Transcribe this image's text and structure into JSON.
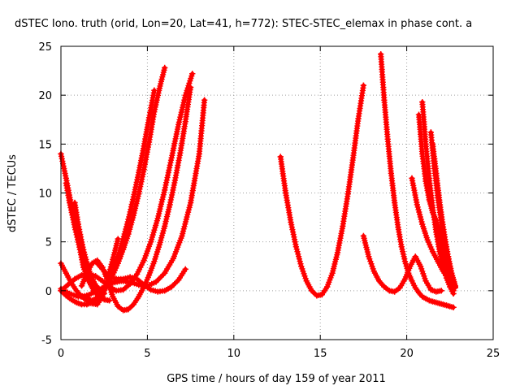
{
  "chart_data": {
    "type": "scatter",
    "title": "dSTEC Iono. truth (orid, Lon=20, Lat=41, h=772): STEC-STEC_elemax in phase cont. a",
    "xlabel": "GPS time / hours of day 159 of year 2011",
    "ylabel": "dSTEC  / TECUs",
    "xlim": [
      0,
      25
    ],
    "ylim": [
      -5,
      25
    ],
    "x_ticks": [
      0,
      5,
      10,
      15,
      20,
      25
    ],
    "y_ticks": [
      -5,
      0,
      5,
      10,
      15,
      20,
      25
    ],
    "x_tick_labels": [
      "0",
      "5",
      "10",
      "15",
      "20",
      "25"
    ],
    "y_tick_labels": [
      "-5",
      "0",
      "5",
      "10",
      "15",
      "20",
      "25"
    ],
    "grid": true,
    "marker": "plus",
    "color": "#ff0000",
    "series": [
      {
        "x": [
          0.0,
          0.3,
          0.6,
          0.9,
          1.2,
          1.5,
          1.8,
          2.1,
          2.4
        ],
        "y": [
          14.0,
          11.5,
          8.8,
          6.3,
          4.1,
          2.3,
          1.0,
          0.3,
          0.0
        ]
      },
      {
        "x": [
          0.3,
          0.5,
          0.8,
          1.1,
          1.3,
          1.6,
          1.9,
          2.2,
          2.5,
          2.8
        ],
        "y": [
          11.0,
          9.0,
          6.5,
          4.2,
          2.4,
          1.0,
          0.0,
          -0.6,
          -0.9,
          -1.0
        ]
      },
      {
        "x": [
          0.8,
          1.0,
          1.3,
          1.6,
          1.9,
          2.2,
          2.5
        ],
        "y": [
          9.0,
          6.8,
          4.2,
          2.2,
          0.9,
          0.1,
          -0.3
        ]
      },
      {
        "x": [
          0.0,
          0.3,
          0.6,
          0.9,
          1.2,
          1.5,
          1.8,
          2.1,
          2.4,
          2.7,
          3.0,
          3.3,
          3.6,
          3.9,
          4.2,
          4.5,
          4.8,
          5.1,
          5.4
        ],
        "y": [
          2.8,
          1.8,
          0.8,
          0.0,
          -0.6,
          -1.0,
          -1.0,
          -0.7,
          -0.1,
          0.8,
          2.0,
          3.5,
          5.3,
          7.3,
          9.6,
          12.1,
          14.8,
          17.7,
          20.5
        ]
      },
      {
        "x": [
          0.0,
          0.3,
          0.6,
          0.9,
          1.2,
          1.5,
          1.8,
          2.1,
          2.4,
          2.7,
          3.0,
          3.3,
          3.6,
          3.9,
          4.2,
          4.5,
          4.8,
          5.1,
          5.4,
          5.7,
          6.0
        ],
        "y": [
          0.0,
          -0.5,
          -0.9,
          -1.2,
          -1.4,
          -1.4,
          -1.2,
          -0.8,
          -0.2,
          0.6,
          1.6,
          2.8,
          4.2,
          5.8,
          7.7,
          9.9,
          12.4,
          15.2,
          18.3,
          20.7,
          22.8
        ]
      },
      {
        "x": [
          0.0,
          0.4,
          0.8,
          1.2,
          1.6,
          2.0,
          2.4,
          2.8,
          3.2,
          3.6,
          4.0,
          4.4,
          4.8,
          5.2,
          5.6,
          6.0,
          6.4,
          6.8,
          7.2,
          7.6
        ],
        "y": [
          0.0,
          0.6,
          1.2,
          1.6,
          1.7,
          1.5,
          1.0,
          0.4,
          0.0,
          0.1,
          0.7,
          1.7,
          3.1,
          5.0,
          7.4,
          10.3,
          13.6,
          17.0,
          20.0,
          22.2
        ]
      },
      {
        "x": [
          0.0,
          0.5,
          1.0,
          1.5,
          2.0,
          2.5,
          3.0,
          3.5,
          4.0,
          4.5,
          5.0,
          5.5,
          6.0,
          6.5,
          7.0,
          7.5,
          8.0,
          8.3
        ],
        "y": [
          0.2,
          -0.3,
          -0.6,
          -0.5,
          -0.1,
          0.4,
          0.8,
          1.0,
          0.9,
          0.6,
          0.5,
          0.9,
          1.8,
          3.3,
          5.6,
          9.0,
          14.0,
          19.5
        ]
      },
      {
        "x": [
          1.2,
          1.5,
          1.8,
          2.1,
          2.4,
          2.7,
          3.0,
          3.3,
          3.6,
          3.9,
          4.2,
          4.5,
          4.8,
          5.1,
          5.4,
          5.7,
          6.0,
          6.3,
          6.6,
          6.9,
          7.2,
          7.5
        ],
        "y": [
          0.5,
          1.8,
          2.8,
          3.1,
          2.4,
          1.0,
          -0.6,
          -1.6,
          -2.0,
          -1.9,
          -1.4,
          -0.6,
          0.4,
          1.6,
          3.0,
          4.7,
          6.6,
          8.8,
          11.3,
          14.1,
          17.3,
          20.8
        ]
      },
      {
        "x": [
          1.5,
          1.8,
          2.1,
          2.4,
          2.7,
          3.0,
          3.3
        ],
        "y": [
          -0.5,
          -1.3,
          -1.4,
          -0.6,
          1.2,
          3.2,
          5.3
        ]
      },
      {
        "x": [
          2.0,
          2.4,
          2.8,
          3.2,
          3.6,
          4.0,
          4.4,
          4.8,
          5.2,
          5.6,
          6.0,
          6.4,
          6.8,
          7.2
        ],
        "y": [
          3.0,
          2.2,
          1.5,
          1.2,
          1.2,
          1.4,
          1.2,
          0.6,
          0.1,
          -0.1,
          0.0,
          0.4,
          1.1,
          2.2
        ]
      },
      {
        "x": [
          12.7,
          13.0,
          13.3,
          13.6,
          13.9,
          14.2,
          14.5,
          14.8,
          15.1,
          15.4,
          15.7,
          16.0,
          16.3,
          16.6,
          16.9,
          17.2,
          17.5
        ],
        "y": [
          13.7,
          10.0,
          7.0,
          4.5,
          2.5,
          1.0,
          0.0,
          -0.5,
          -0.4,
          0.4,
          1.8,
          3.9,
          6.6,
          9.9,
          13.6,
          17.6,
          21.0
        ]
      },
      {
        "x": [
          17.5,
          17.8,
          18.1,
          18.4,
          18.7,
          19.0,
          19.3,
          19.6,
          19.9,
          20.2,
          20.5,
          20.8,
          21.1,
          21.4,
          21.7,
          22.0
        ],
        "y": [
          5.6,
          3.5,
          2.0,
          1.0,
          0.4,
          0.0,
          -0.1,
          0.3,
          1.2,
          2.5,
          3.5,
          2.5,
          1.0,
          0.1,
          -0.1,
          0.0
        ]
      },
      {
        "x": [
          18.5,
          18.7,
          18.9,
          19.1,
          19.3,
          19.5,
          19.7,
          19.9,
          20.1,
          20.3,
          20.5,
          20.7,
          20.9,
          21.1,
          21.3,
          21.5,
          21.7,
          21.9,
          22.1,
          22.3,
          22.5,
          22.7
        ],
        "y": [
          24.2,
          19.5,
          15.5,
          12.0,
          9.0,
          6.5,
          4.5,
          3.0,
          1.8,
          1.0,
          0.3,
          -0.2,
          -0.6,
          -0.8,
          -1.0,
          -1.1,
          -1.2,
          -1.3,
          -1.4,
          -1.5,
          -1.6,
          -1.7
        ]
      },
      {
        "x": [
          20.3,
          20.6,
          20.9,
          21.2,
          21.5,
          21.8,
          22.1,
          22.4,
          22.6,
          22.8
        ],
        "y": [
          11.5,
          8.8,
          6.8,
          5.2,
          4.0,
          3.0,
          2.0,
          1.2,
          0.6,
          0.3
        ]
      },
      {
        "x": [
          20.7,
          20.9,
          21.1,
          21.3,
          21.5,
          21.7,
          21.9,
          22.1,
          22.3,
          22.5,
          22.7
        ],
        "y": [
          18.0,
          14.0,
          11.2,
          9.3,
          8.0,
          7.2,
          6.0,
          4.2,
          2.5,
          1.0,
          0.0
        ]
      },
      {
        "x": [
          20.9,
          21.1,
          21.3,
          21.5,
          21.7,
          21.9,
          22.1,
          22.3,
          22.5,
          22.7
        ],
        "y": [
          19.3,
          15.0,
          11.5,
          8.5,
          6.0,
          4.0,
          2.5,
          1.3,
          0.4,
          -0.3
        ]
      },
      {
        "x": [
          21.4,
          21.6,
          21.8,
          22.0,
          22.2,
          22.4,
          22.6,
          22.8
        ],
        "y": [
          16.2,
          12.5,
          9.5,
          7.0,
          5.0,
          3.2,
          1.8,
          0.5
        ]
      },
      {
        "x": [
          21.5,
          21.7,
          21.9,
          22.1,
          22.3,
          22.5,
          22.7
        ],
        "y": [
          15.0,
          12.0,
          8.8,
          6.0,
          3.8,
          2.0,
          0.8
        ]
      },
      {
        "x": [
          21.6,
          21.8,
          22.0,
          22.2,
          22.4,
          22.6,
          22.8
        ],
        "y": [
          13.5,
          10.5,
          7.8,
          5.5,
          3.5,
          1.8,
          0.4
        ]
      }
    ]
  }
}
